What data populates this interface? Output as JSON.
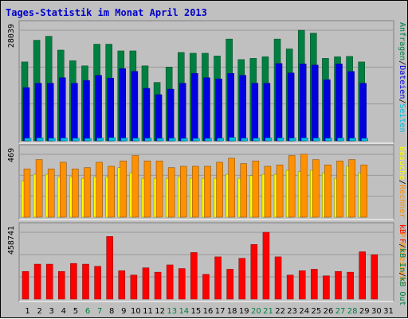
{
  "title": "Tages-Statistik im Monat April 2013",
  "colors": {
    "background": "#c0c0c0",
    "title": "#0000cc",
    "hits": "#008040",
    "files": "#0000e0",
    "pages": "#00c0e0",
    "visits": "#ffff00",
    "sites": "#ff9000",
    "kb_in": "#008040",
    "kb_out": "#ff0000",
    "weekend_label": "#008040",
    "weekday_label": "#000000"
  },
  "chart_data": {
    "type": "bar",
    "days": [
      "1",
      "2",
      "3",
      "4",
      "5",
      "6",
      "7",
      "8",
      "9",
      "10",
      "11",
      "12",
      "13",
      "14",
      "15",
      "16",
      "17",
      "18",
      "19",
      "20",
      "21",
      "22",
      "23",
      "24",
      "25",
      "26",
      "27",
      "28",
      "29",
      "30",
      "31"
    ],
    "weekend_days": [
      "6",
      "7",
      "13",
      "14",
      "20",
      "21",
      "27",
      "28"
    ],
    "panels": [
      {
        "name": "hits_files_pages",
        "ymax_label": "28039",
        "ymax": 28039,
        "right_legend": [
          {
            "text": "Anfragen",
            "color": "#008040"
          },
          {
            "text": "/",
            "color": "#000000"
          },
          {
            "text": "Dateien",
            "color": "#0000e0"
          },
          {
            "text": "/",
            "color": "#000000"
          },
          {
            "text": "Seiten",
            "color": "#00c0e0"
          }
        ],
        "series": [
          {
            "name": "Anfragen",
            "values": [
              20000,
              25500,
              26500,
              23000,
              20300,
              19000,
              24500,
              24500,
              22800,
              22800,
              19000,
              14800,
              18700,
              22400,
              22200,
              22200,
              21500,
              25800,
              20600,
              20900,
              21300,
              25800,
              23300,
              28039,
              27300,
              20900,
              21300,
              21400,
              20000,
              0,
              0
            ]
          },
          {
            "name": "Dateien",
            "values": [
              13500,
              14600,
              14600,
              16000,
              14600,
              15300,
              16600,
              15900,
              18300,
              17600,
              13300,
              11700,
              13100,
              14600,
              17100,
              16000,
              15700,
              17100,
              16600,
              14600,
              14600,
              19600,
              17200,
              19500,
              19200,
              15500,
              19500,
              17600,
              14600,
              0,
              0
            ]
          },
          {
            "name": "Seiten",
            "values": [
              650,
              720,
              650,
              700,
              650,
              520,
              690,
              800,
              680,
              650,
              650,
              620,
              650,
              600,
              600,
              600,
              650,
              850,
              650,
              650,
              720,
              720,
              680,
              720,
              680,
              650,
              700,
              680,
              620,
              0,
              0
            ]
          }
        ]
      },
      {
        "name": "visits_sites",
        "ymax_label": "469",
        "ymax": 469,
        "right_legend": [
          {
            "text": "Besuche",
            "color": "#ffff00"
          },
          {
            "text": "/",
            "color": "#000000"
          },
          {
            "text": "Rechner (IP-Adressen)",
            "color": "#ff9000"
          }
        ],
        "series": [
          {
            "name": "Besuche",
            "values": [
              270,
              320,
              320,
              300,
              300,
              290,
              300,
              300,
              370,
              330,
              290,
              290,
              290,
              300,
              290,
              290,
              290,
              320,
              290,
              310,
              320,
              320,
              350,
              340,
              350,
              330,
              290,
              380,
              330,
              0,
              0
            ]
          },
          {
            "name": "Rechner (IP-Adressen)",
            "values": [
              360,
              430,
              360,
              410,
              360,
              370,
              410,
              380,
              420,
              460,
              420,
              420,
              370,
              380,
              380,
              380,
              410,
              440,
              400,
              420,
              380,
              390,
              460,
              470,
              430,
              390,
              420,
              430,
              390,
              0,
              0
            ]
          }
        ]
      },
      {
        "name": "kb_in_out",
        "ymax_label": "458741",
        "ymax": 458741,
        "right_legend": [
          {
            "text": "kB F",
            "color": "#ff0000"
          },
          {
            "text": "/",
            "color": "#000000"
          },
          {
            "text": "kB In",
            "color": "#008040"
          },
          {
            "text": "/",
            "color": "#000000"
          },
          {
            "text": "kB Out",
            "color": "#008040"
          }
        ],
        "series": [
          {
            "name": "kB F",
            "values": [
              190000,
              240000,
              240000,
              190000,
              245000,
              240000,
              225000,
              430000,
              195000,
              165000,
              215000,
              185000,
              235000,
              210000,
              320000,
              170000,
              290000,
              205000,
              280000,
              375000,
              458741,
              290000,
              165000,
              195000,
              205000,
              160000,
              190000,
              185000,
              325000,
              305000,
              0
            ]
          }
        ]
      }
    ]
  }
}
